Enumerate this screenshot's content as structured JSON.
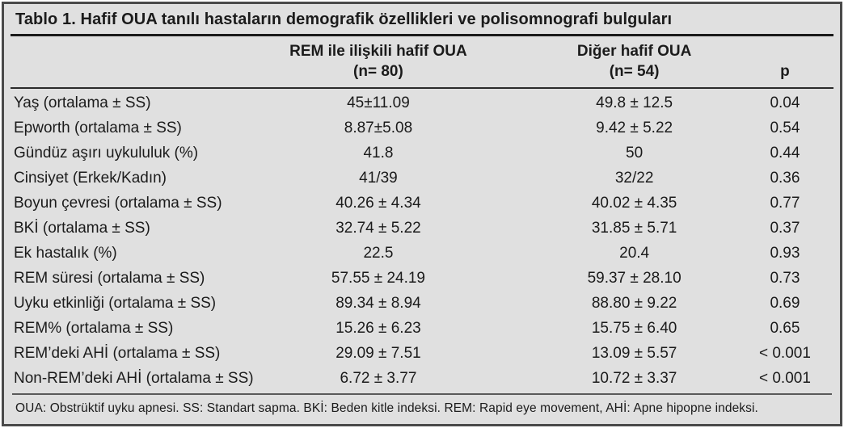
{
  "table": {
    "title": "Tablo 1. Hafif OUA tanılı hastaların demografik özellikleri ve polisomnografi bulguları",
    "columns": {
      "group1": {
        "label": "REM ile ilişkili hafif OUA",
        "sub": "(n= 80)"
      },
      "group2": {
        "label": "Diğer hafif OUA",
        "sub": "(n= 54)"
      },
      "p": {
        "label": "p"
      }
    },
    "rows": [
      {
        "label": "Yaş (ortalama ± SS)",
        "rem": "45±11.09",
        "other": "49.8 ± 12.5",
        "p": "0.04"
      },
      {
        "label": "Epworth (ortalama ± SS)",
        "rem": "8.87±5.08",
        "other": "9.42 ± 5.22",
        "p": "0.54"
      },
      {
        "label": "Gündüz aşırı uykululuk (%)",
        "rem": "41.8",
        "other": "50",
        "p": "0.44"
      },
      {
        "label": "Cinsiyet (Erkek/Kadın)",
        "rem": "41/39",
        "other": "32/22",
        "p": "0.36"
      },
      {
        "label": "Boyun çevresi (ortalama ± SS)",
        "rem": "40.26 ± 4.34",
        "other": "40.02 ± 4.35",
        "p": "0.77"
      },
      {
        "label": "BKİ (ortalama ± SS)",
        "rem": "32.74 ± 5.22",
        "other": "31.85 ± 5.71",
        "p": "0.37"
      },
      {
        "label": "Ek hastalık (%)",
        "rem": "22.5",
        "other": "20.4",
        "p": "0.93"
      },
      {
        "label": "REM süresi (ortalama ± SS)",
        "rem": "57.55 ± 24.19",
        "other": "59.37 ± 28.10",
        "p": "0.73"
      },
      {
        "label": "Uyku etkinliği (ortalama ± SS)",
        "rem": "89.34 ± 8.94",
        "other": "88.80 ± 9.22",
        "p": "0.69"
      },
      {
        "label": "REM% (ortalama ± SS)",
        "rem": "15.26 ± 6.23",
        "other": "15.75 ± 6.40",
        "p": "0.65"
      },
      {
        "label": "REM’deki AHİ (ortalama ± SS)",
        "rem": "29.09 ± 7.51",
        "other": "13.09 ± 5.57",
        "p": "< 0.001"
      },
      {
        "label": "Non-REM’deki AHİ (ortalama ± SS)",
        "rem": "6.72 ± 3.77",
        "other": "10.72 ± 3.37",
        "p": "< 0.001"
      }
    ],
    "footnote": "OUA: Obstrüktif uyku apnesi. SS: Standart sapma. BKİ: Beden kitle indeksi. REM: Rapid eye movement, AHİ: Apne hipopne indeksi."
  }
}
